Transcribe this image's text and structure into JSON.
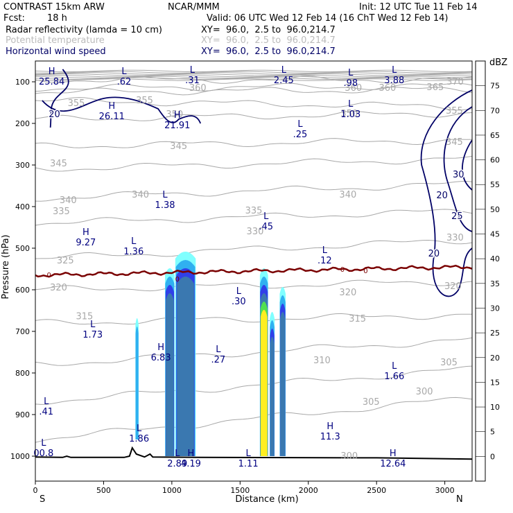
{
  "header": {
    "model": "CONTRAST 15km ARW",
    "center": "NCAR/MMM",
    "init": "Init: 12 UTC Tue 11 Feb 14",
    "fcst_label": "Fcst:",
    "fcst_value": "18 h",
    "valid": "Valid: 06 UTC Wed 12 Feb 14 (16 ChT Wed 12 Feb 14)"
  },
  "fields": [
    {
      "name": "Radar reflectivity (lamda = 10 cm)",
      "xy": "XY=  96.0,  2.5 to  96.0,214.7",
      "color": "#000000"
    },
    {
      "name": "Potential temperature",
      "xy": "XY=  96.0,  2.5 to  96.0,214.7",
      "color": "#bbbbbb"
    },
    {
      "name": "Horizontal wind speed",
      "xy": "XY=  96.0,  2.5 to  96.0,214.7",
      "color": "#000066"
    }
  ],
  "chart_data": {
    "type": "cross-section",
    "xlabel": "Distance (km)",
    "ylabel": "Pressure (hPa)",
    "xlim": [
      0,
      3200
    ],
    "ylim": [
      1050,
      70
    ],
    "x_ticks": [
      0,
      500,
      1000,
      1500,
      2000,
      2500,
      3000
    ],
    "y_ticks": [
      100,
      200,
      300,
      400,
      500,
      600,
      700,
      800,
      900,
      1000
    ],
    "direction_left": "S",
    "direction_right": "N",
    "colorbar": {
      "unit": "dBZ",
      "levels": [
        "75",
        "70",
        "65",
        "60",
        "55",
        "50",
        "45",
        "40",
        "35",
        "30",
        "25",
        "20",
        "15",
        "10",
        "5",
        "0"
      ],
      "colors": [
        "#ffffff",
        "#c080c0",
        "#9030a0",
        "#904050",
        "#b01010",
        "#e01010",
        "#ff5010",
        "#ff9040",
        "#ffc040",
        "#ffee20",
        "#00a000",
        "#50e050",
        "#3a78b0",
        "#3040e8",
        "#30b0f0",
        "#80ffff",
        "#ffffff"
      ]
    },
    "theta_contours": [
      {
        "value": 370,
        "y_left": 95,
        "y_right": 95
      },
      {
        "value": 365,
        "y_left": 115,
        "y_right": 110
      },
      {
        "value": 360,
        "y_left": 125,
        "y_right": 118
      },
      {
        "value": 355,
        "y_left": 145,
        "y_right": 160
      },
      {
        "value": 350,
        "y_left": 190,
        "y_right": 175
      },
      {
        "value": 345,
        "y_left": 255,
        "y_right": 240
      },
      {
        "value": 340,
        "y_left": 310,
        "y_right": 285
      },
      {
        "value": 335,
        "y_left": 380,
        "y_right": 345
      },
      {
        "value": 330,
        "y_left": 440,
        "y_right": 410
      },
      {
        "value": 325,
        "y_left": 525,
        "y_right": 480
      },
      {
        "value": 320,
        "y_left": 600,
        "y_right": 580
      },
      {
        "value": 315,
        "y_left": 680,
        "y_right": 660
      },
      {
        "value": 310,
        "y_left": 780,
        "y_right": 720
      },
      {
        "value": 305,
        "y_left": 870,
        "y_right": 790
      },
      {
        "value": 300,
        "y_left": 960,
        "y_right": 860
      }
    ],
    "theta_labels": [
      {
        "text": "360",
        "x": 1190,
        "p": 115
      },
      {
        "text": "360",
        "x": 2330,
        "p": 115
      },
      {
        "text": "360",
        "x": 2580,
        "p": 115
      },
      {
        "text": "365",
        "x": 2930,
        "p": 113
      },
      {
        "text": "370",
        "x": 3075,
        "p": 100
      },
      {
        "text": "355",
        "x": 300,
        "p": 152
      },
      {
        "text": "355",
        "x": 800,
        "p": 145
      },
      {
        "text": "355",
        "x": 3070,
        "p": 170
      },
      {
        "text": "350",
        "x": 1020,
        "p": 178
      },
      {
        "text": "350",
        "x": 2300,
        "p": 177
      },
      {
        "text": "345",
        "x": 170,
        "p": 297
      },
      {
        "text": "345",
        "x": 1050,
        "p": 255
      },
      {
        "text": "345",
        "x": 3070,
        "p": 245
      },
      {
        "text": "340",
        "x": 240,
        "p": 385
      },
      {
        "text": "340",
        "x": 770,
        "p": 372
      },
      {
        "text": "340",
        "x": 2290,
        "p": 372
      },
      {
        "text": "335",
        "x": 190,
        "p": 412
      },
      {
        "text": "335",
        "x": 1600,
        "p": 410
      },
      {
        "text": "330",
        "x": 1610,
        "p": 460
      },
      {
        "text": "330",
        "x": 3075,
        "p": 475
      },
      {
        "text": "325",
        "x": 220,
        "p": 530
      },
      {
        "text": "320",
        "x": 170,
        "p": 595
      },
      {
        "text": "320",
        "x": 2290,
        "p": 607
      },
      {
        "text": "320",
        "x": 3060,
        "p": 592
      },
      {
        "text": "315",
        "x": 360,
        "p": 664
      },
      {
        "text": "315",
        "x": 2360,
        "p": 670
      },
      {
        "text": "310",
        "x": 2100,
        "p": 770
      },
      {
        "text": "305",
        "x": 2460,
        "p": 870
      },
      {
        "text": "305",
        "x": 3030,
        "p": 775
      },
      {
        "text": "300",
        "x": 2850,
        "p": 845
      },
      {
        "text": "300",
        "x": 2300,
        "p": 1000
      }
    ],
    "extrema": [
      {
        "type": "H",
        "value": "25.84",
        "x": 120,
        "p": 82
      },
      {
        "type": "L",
        "value": ".62",
        "x": 650,
        "p": 82
      },
      {
        "type": "L",
        "value": ".31",
        "x": 1150,
        "p": 78
      },
      {
        "type": "L",
        "value": "2.45",
        "x": 1820,
        "p": 78
      },
      {
        "type": "L",
        "value": ".98",
        "x": 2310,
        "p": 85
      },
      {
        "type": "L",
        "value": "3.88",
        "x": 2630,
        "p": 78
      },
      {
        "type": "H",
        "value": "26.11",
        "x": 560,
        "p": 165
      },
      {
        "type": "H",
        "value": "21.91",
        "x": 1040,
        "p": 187
      },
      {
        "type": "L",
        "value": "1.03",
        "x": 2310,
        "p": 160
      },
      {
        "type": "L",
        "value": ".25",
        "x": 1940,
        "p": 208
      },
      {
        "type": "L",
        "value": "1.38",
        "x": 950,
        "p": 378
      },
      {
        "type": "L",
        "value": ".45",
        "x": 1690,
        "p": 430
      },
      {
        "type": "H",
        "value": "9.27",
        "x": 370,
        "p": 468
      },
      {
        "type": "L",
        "value": "1.36",
        "x": 720,
        "p": 490
      },
      {
        "type": "L",
        "value": ".12",
        "x": 2120,
        "p": 512
      },
      {
        "type": "L",
        "value": ".30",
        "x": 1490,
        "p": 610
      },
      {
        "type": "L",
        "value": "1.73",
        "x": 420,
        "p": 690
      },
      {
        "type": "H",
        "value": "6.83",
        "x": 920,
        "p": 745
      },
      {
        "type": "L",
        "value": ".27",
        "x": 1340,
        "p": 750
      },
      {
        "type": "L",
        "value": "1.66",
        "x": 2630,
        "p": 790
      },
      {
        "type": "L",
        "value": ".41",
        "x": 80,
        "p": 875
      },
      {
        "type": "L",
        "value": "1.86",
        "x": 760,
        "p": 940
      },
      {
        "type": "H",
        "value": "11.3",
        "x": 2160,
        "p": 935
      },
      {
        "type": "H",
        "value": "4.19",
        "x": 1140,
        "p": 1000
      },
      {
        "type": "L",
        "value": "1.11",
        "x": 1560,
        "p": 1000
      },
      {
        "type": "H",
        "value": "12.64",
        "x": 2620,
        "p": 1000
      },
      {
        "type": "L",
        "value": "2.89",
        "x": 1040,
        "p": 1000
      },
      {
        "type": "L",
        "value": "00.8",
        "x": 60,
        "p": 975
      }
    ],
    "wind_contours": [
      {
        "label": "20",
        "x": 140,
        "p": 185
      },
      {
        "label": "20",
        "x": 2980,
        "p": 380
      },
      {
        "label": "30",
        "x": 3100,
        "p": 330
      },
      {
        "label": "25",
        "x": 3090,
        "p": 430
      },
      {
        "label": "20",
        "x": 2920,
        "p": 520
      }
    ],
    "zero_line_labels": [
      {
        "text": "0",
        "x": 100,
        "p": 563
      },
      {
        "text": "0",
        "x": 1040,
        "p": 573
      },
      {
        "text": "0",
        "x": 2250,
        "p": 550
      },
      {
        "text": "0",
        "x": 2420,
        "p": 553
      }
    ],
    "reflectivity_cells": [
      {
        "x_center": 985,
        "half_width": 35,
        "p_top": 545,
        "p_bottom": 1000,
        "max_dbz": 20
      },
      {
        "x_center": 1100,
        "half_width": 75,
        "p_top": 505,
        "p_bottom": 1000,
        "max_dbz": 20
      },
      {
        "x_center": 1675,
        "half_width": 30,
        "p_top": 545,
        "p_bottom": 1000,
        "max_dbz": 30
      },
      {
        "x_center": 1735,
        "half_width": 18,
        "p_top": 650,
        "p_bottom": 1000,
        "max_dbz": 20
      },
      {
        "x_center": 1812,
        "half_width": 22,
        "p_top": 590,
        "p_bottom": 1000,
        "max_dbz": 20
      },
      {
        "x_center": 745,
        "half_width": 12,
        "p_top": 665,
        "p_bottom": 960,
        "max_dbz": 10
      }
    ],
    "terrain": [
      [
        0,
        1002
      ],
      [
        200,
        1003
      ],
      [
        230,
        1000
      ],
      [
        260,
        1003
      ],
      [
        650,
        1003
      ],
      [
        690,
        1000
      ],
      [
        710,
        980
      ],
      [
        740,
        995
      ],
      [
        800,
        1002
      ],
      [
        840,
        995
      ],
      [
        860,
        1002
      ],
      [
        1200,
        1003
      ],
      [
        2500,
        1004
      ],
      [
        3200,
        1007
      ]
    ]
  }
}
